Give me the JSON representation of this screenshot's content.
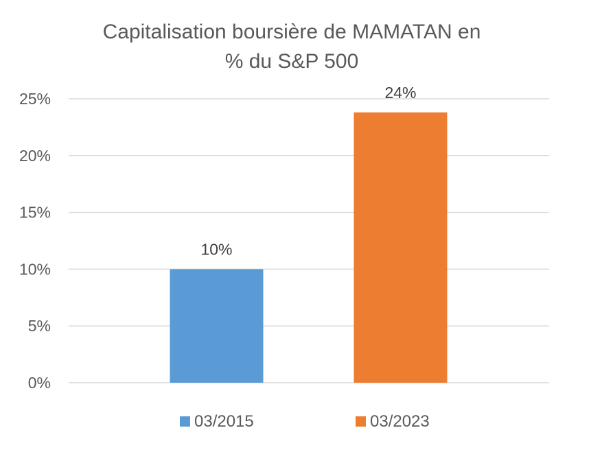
{
  "chart_data": {
    "type": "bar",
    "title_lines": [
      "Capitalisation boursière de MAMATAN en",
      "% du S&P 500"
    ],
    "categories": [
      ""
    ],
    "series": [
      {
        "name": "03/2015",
        "values": [
          10
        ],
        "color": "#5b9bd5",
        "data_label": "10%"
      },
      {
        "name": "03/2023",
        "values": [
          23.8
        ],
        "color": "#ed7d31",
        "data_label": "24%"
      }
    ],
    "ylim": [
      0,
      25
    ],
    "yticks": [
      {
        "value": 0,
        "label": "0%"
      },
      {
        "value": 5,
        "label": "5%"
      },
      {
        "value": 10,
        "label": "10%"
      },
      {
        "value": 15,
        "label": "15%"
      },
      {
        "value": 20,
        "label": "20%"
      },
      {
        "value": 25,
        "label": "25%"
      }
    ],
    "grid": true,
    "legend_position": "bottom"
  }
}
